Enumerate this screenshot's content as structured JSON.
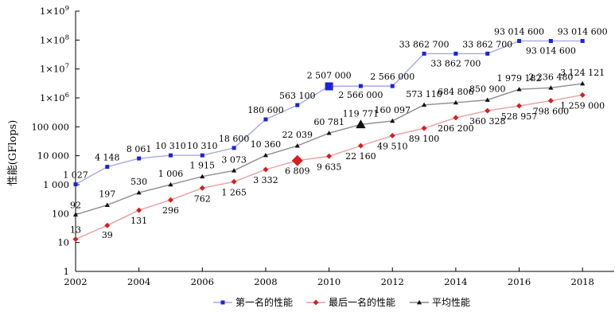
{
  "chart_data": {
    "type": "line",
    "ylabel": "性能(GFlops)",
    "xlabel": "",
    "title": "",
    "y_scale": "log",
    "xlim": [
      2002,
      2019
    ],
    "ylim": [
      1,
      1000000000
    ],
    "x_ticks": [
      2002,
      2004,
      2006,
      2008,
      2010,
      2012,
      2014,
      2016,
      2018
    ],
    "y_ticks": [
      {
        "value": 1,
        "label": "1"
      },
      {
        "value": 10,
        "label": "10"
      },
      {
        "value": 100,
        "label": "100"
      },
      {
        "value": 1000,
        "label": "1 000"
      },
      {
        "value": 10000,
        "label": "10 000"
      },
      {
        "value": 100000,
        "label": "100 000"
      },
      {
        "value": 1000000,
        "label": "1×10",
        "exp": "6"
      },
      {
        "value": 10000000,
        "label": "1×10",
        "exp": "7"
      },
      {
        "value": 100000000,
        "label": "1×10",
        "exp": "8"
      },
      {
        "value": 1000000000,
        "label": "1×10",
        "exp": "9"
      }
    ],
    "grid": false,
    "legend_position": "bottom",
    "x": [
      2002,
      2003,
      2004,
      2005,
      2006,
      2007,
      2008,
      2009,
      2010,
      2011,
      2012,
      2013,
      2014,
      2015,
      2016,
      2017,
      2018
    ],
    "series": [
      {
        "name": "第一名的性能",
        "color": "#1c24d6",
        "marker": "square",
        "line_color": "#a8a8e8",
        "values": [
          1027,
          4148,
          8061,
          10310,
          10310,
          18600,
          180600,
          563100,
          2507000,
          2566000,
          2566000,
          33862700,
          33862700,
          33862700,
          93014600,
          93014600,
          93014600
        ],
        "labels": [
          "1 027",
          "4 148",
          "8 061",
          "10 310",
          "10 310",
          "18 600",
          "180 600",
          "563 100",
          "2 507 000",
          "2 566 000",
          "2 566 000",
          "33 862 700",
          "33 862 700",
          "33 862 700",
          "93 014 600",
          "93 014 600",
          "93 014 600"
        ]
      },
      {
        "name": "最后一名的性能",
        "color": "#d42020",
        "marker": "diamond",
        "line_color": "#e8a0a0",
        "values": [
          13,
          39,
          131,
          296,
          762,
          1265,
          3332,
          6809,
          9635,
          22160,
          49510,
          89100,
          206200,
          360328,
          528957,
          798600,
          1259000
        ],
        "labels": [
          "13",
          "39",
          "131",
          "296",
          "762",
          "1 265",
          "3 332",
          "6 809",
          "9 635",
          "22 160",
          "49 510",
          "89 100",
          "206 200",
          "360 328",
          "528 957",
          "798 600",
          "1 259 000"
        ]
      },
      {
        "name": "平均性能",
        "color": "#111111",
        "marker": "triangle",
        "line_color": "#8c8c8c",
        "values": [
          92,
          197,
          530,
          1006,
          1915,
          3073,
          10360,
          22039,
          60781,
          119771,
          160097,
          573110,
          684806,
          850900,
          1979182,
          2236480,
          3124121
        ],
        "labels": [
          "92",
          "197",
          "530",
          "1 006",
          "1 915",
          "3 073",
          "10 360",
          "22 039",
          "60 781",
          "119 771",
          "160 097",
          "573 110",
          "684 806",
          "850 900",
          "1 979 182",
          "2 236 480",
          "3 124 121"
        ]
      }
    ]
  }
}
